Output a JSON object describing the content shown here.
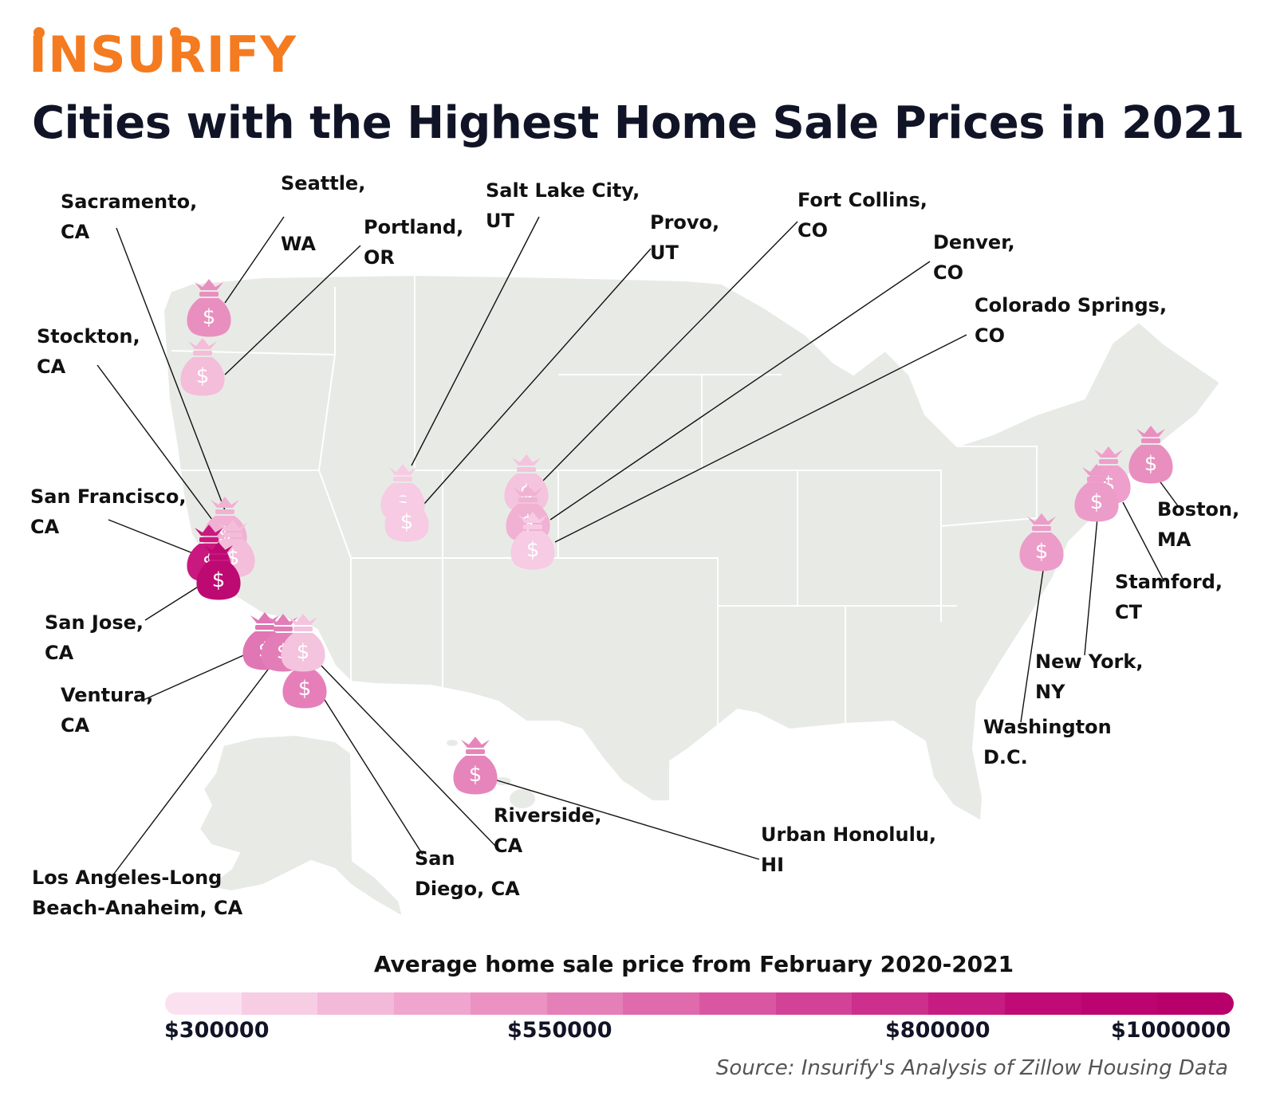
{
  "brand": {
    "name": "INSURIFY",
    "color": "#f47b20"
  },
  "title": "Cities with the Highest Home Sale Prices in 2021",
  "legend": {
    "title": "Average home sale price from February 2020-2021",
    "ticks": [
      "$300000",
      "$550000",
      "$800000",
      "$1000000"
    ],
    "colors": [
      "#fbe1ef",
      "#f7cde4",
      "#f3b9d9",
      "#efa5ce",
      "#eb92c3",
      "#e57fb8",
      "#df6bad",
      "#d957a2",
      "#d24397",
      "#cc2f8c",
      "#c61c81",
      "#c00a76",
      "#bc0470",
      "#b8006a"
    ]
  },
  "source": "Source: Insurify's Analysis of Zillow Housing Data",
  "cities": [
    {
      "name": "Seattle, WA",
      "label_lines": [
        "Seattle,",
        "",
        "WA"
      ],
      "color": "#e98fbf"
    },
    {
      "name": "Portland, OR",
      "label_lines": [
        "Portland,",
        "OR"
      ],
      "color": "#f4bdd9"
    },
    {
      "name": "Sacramento, CA",
      "label_lines": [
        "Sacramento,",
        "CA"
      ],
      "color": "#f0b1d3"
    },
    {
      "name": "Stockton, CA",
      "label_lines": [
        "Stockton,",
        "CA"
      ],
      "color": "#f4bdd9"
    },
    {
      "name": "San Francisco, CA",
      "label_lines": [
        "San Francisco,",
        "CA"
      ],
      "color": "#c9197f"
    },
    {
      "name": "San Jose, CA",
      "label_lines": [
        "San Jose,",
        "CA"
      ],
      "color": "#bd0a72"
    },
    {
      "name": "Ventura, CA",
      "label_lines": [
        "Ventura,",
        "CA"
      ],
      "color": "#e076b4"
    },
    {
      "name": "Los Angeles-Long Beach-Anaheim, CA",
      "label_lines": [
        "Los Angeles-Long",
        "Beach-Anaheim, CA"
      ],
      "color": "#e37db7"
    },
    {
      "name": "San Diego, CA",
      "label_lines": [
        "San",
        "Diego, CA"
      ],
      "color": "#e67fb9"
    },
    {
      "name": "Riverside, CA",
      "label_lines": [
        "Riverside,",
        "CA"
      ],
      "color": "#f4c3dd"
    },
    {
      "name": "Urban Honolulu, HI",
      "label_lines": [
        "Urban Honolulu,",
        "HI"
      ],
      "color": "#e685bb"
    },
    {
      "name": "Salt Lake City, UT",
      "label_lines": [
        "Salt Lake City,",
        "UT"
      ],
      "color": "#f6cbe3"
    },
    {
      "name": "Provo, UT",
      "label_lines": [
        "Provo,",
        "UT"
      ],
      "color": "#f6cbe3"
    },
    {
      "name": "Fort Collins, CO",
      "label_lines": [
        "Fort Collins,",
        "CO"
      ],
      "color": "#f4c3dd"
    },
    {
      "name": "Denver, CO",
      "label_lines": [
        "Denver,",
        "CO"
      ],
      "color": "#f0b1d3"
    },
    {
      "name": "Colorado Springs, CO",
      "label_lines": [
        "Colorado Springs,",
        "CO"
      ],
      "color": "#f6cbe3"
    },
    {
      "name": "Boston, MA",
      "label_lines": [
        "Boston,",
        "MA"
      ],
      "color": "#e98fbf"
    },
    {
      "name": "Stamford, CT",
      "label_lines": [
        "Stamford,",
        "CT"
      ],
      "color": "#ef9fcb"
    },
    {
      "name": "New York, NY",
      "label_lines": [
        "New York,",
        "NY"
      ],
      "color": "#ec9cc8"
    },
    {
      "name": "Washington D.C.",
      "label_lines": [
        "Washington",
        "D.C."
      ],
      "color": "#ec9cc8"
    }
  ]
}
